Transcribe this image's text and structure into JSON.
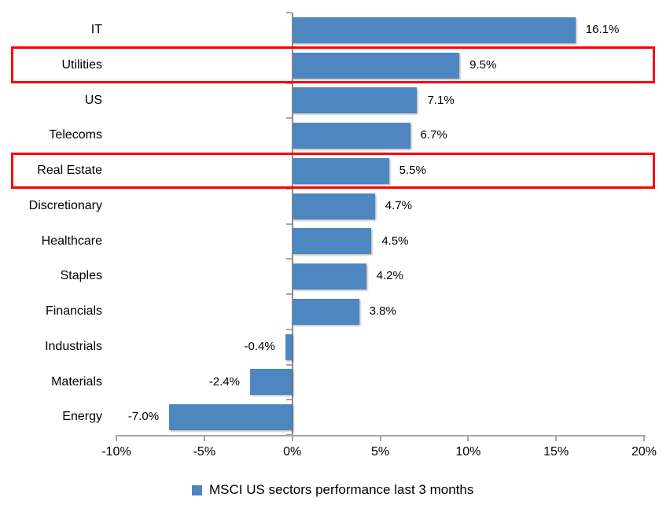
{
  "chart_data": {
    "type": "bar",
    "orientation": "horizontal",
    "title": "",
    "categories": [
      "IT",
      "Utilities",
      "US",
      "Telecoms",
      "Real Estate",
      "Discretionary",
      "Healthcare",
      "Staples",
      "Financials",
      "Industrials",
      "Materials",
      "Energy"
    ],
    "values": [
      16.1,
      9.5,
      7.1,
      6.7,
      5.5,
      4.7,
      4.5,
      4.2,
      3.8,
      -0.4,
      -2.4,
      -7.0
    ],
    "data_labels": [
      "16.1%",
      "9.5%",
      "7.1%",
      "6.7%",
      "5.5%",
      "4.7%",
      "4.5%",
      "4.2%",
      "3.8%",
      "-0.4%",
      "-2.4%",
      "-7.0%"
    ],
    "highlighted_categories": [
      "Utilities",
      "Real Estate"
    ],
    "x_ticks": [
      -10,
      -5,
      0,
      5,
      10,
      15,
      20
    ],
    "x_tick_labels": [
      "-10%",
      "-5%",
      "0%",
      "5%",
      "10%",
      "15%",
      "20%"
    ],
    "x_range": [
      -10,
      20
    ],
    "xlabel": "",
    "ylabel": "",
    "grid": false,
    "legend": "MSCI US sectors performance last 3 months",
    "legend_position": "bottom",
    "colors": {
      "bar": "#4e86c0",
      "highlight_border": "#ff0000",
      "axis": "#a6a6a6",
      "zero_axis": "#8c8c8c",
      "text": "#000000",
      "background": "#ffffff"
    }
  }
}
